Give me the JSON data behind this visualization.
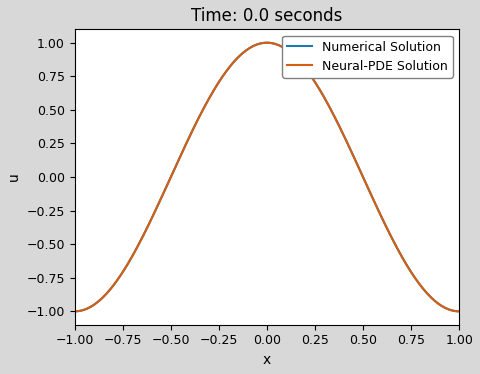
{
  "title": "Time: 0.0 seconds",
  "xlabel": "x",
  "ylabel": "u",
  "xlim": [
    -1.0,
    1.0
  ],
  "ylim": [
    -1.1,
    1.1
  ],
  "xticks": [
    -1.0,
    -0.75,
    -0.5,
    -0.25,
    0.0,
    0.25,
    0.5,
    0.75,
    1.0
  ],
  "yticks": [
    -1.0,
    -0.75,
    -0.5,
    -0.25,
    0.0,
    0.25,
    0.5,
    0.75,
    1.0
  ],
  "numerical_color": "#1f77b4",
  "npde_color": "#d45f12",
  "numerical_label": "Numerical Solution",
  "npde_label": "Neural-PDE Solution",
  "num_points": 500,
  "axes_background": "#ffffff",
  "figure_background": "#d8d8d8",
  "title_fontsize": 12,
  "axis_label_fontsize": 10,
  "tick_fontsize": 9,
  "legend_fontsize": 9,
  "linewidth": 1.5
}
